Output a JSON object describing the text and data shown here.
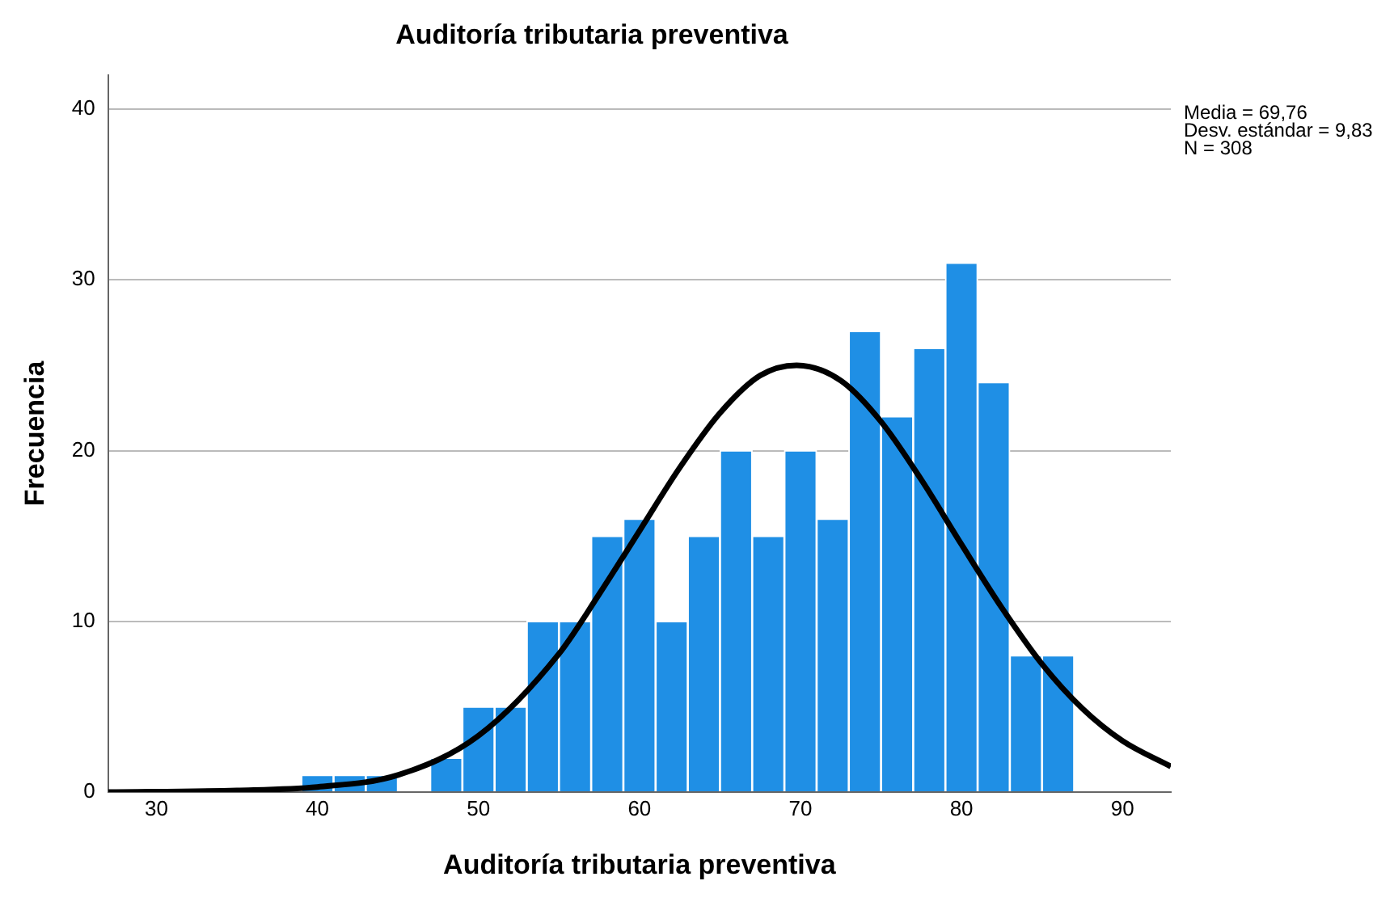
{
  "chart_data": {
    "type": "histogram",
    "title": "Auditoría tributaria preventiva",
    "xlabel": "Auditoría tributaria preventiva",
    "ylabel": "Frecuencia",
    "bins": [
      39,
      41,
      43,
      45,
      47,
      49,
      51,
      53,
      55,
      57,
      59,
      61,
      63,
      65,
      67,
      69,
      71,
      73,
      75,
      77,
      79,
      81,
      83,
      85,
      87
    ],
    "values": [
      1,
      1,
      1,
      0,
      2,
      5,
      5,
      10,
      10,
      15,
      16,
      10,
      15,
      20,
      15,
      20,
      16,
      27,
      22,
      26,
      31,
      24,
      8,
      8
    ],
    "color": "#1f8fe5",
    "series": [
      {
        "type": "line",
        "color": "#000000",
        "x": [
          27,
          35,
          40,
          45,
          50,
          55,
          57.5,
          60,
          62.5,
          65,
          67.5,
          69.76,
          72.5,
          75,
          77.5,
          80,
          82.5,
          85,
          87.5,
          90,
          93
        ],
        "values": [
          0,
          0.1,
          0.3,
          1.0,
          3.3,
          8.1,
          11.6,
          15.3,
          19.0,
          22.2,
          24.4,
          25.0,
          24.1,
          21.7,
          18.3,
          14.5,
          10.8,
          7.5,
          4.9,
          3.0,
          1.5
        ]
      }
    ],
    "xlim": [
      27,
      93
    ],
    "xticks": [
      30,
      40,
      50,
      60,
      70,
      80,
      90
    ],
    "ylim": [
      0,
      42
    ],
    "yticks": [
      0,
      10,
      20,
      30,
      40
    ],
    "grid": "y",
    "annotations": [
      "Media = 69,76",
      "Desv. estándar = 9,83",
      "N = 308"
    ]
  }
}
